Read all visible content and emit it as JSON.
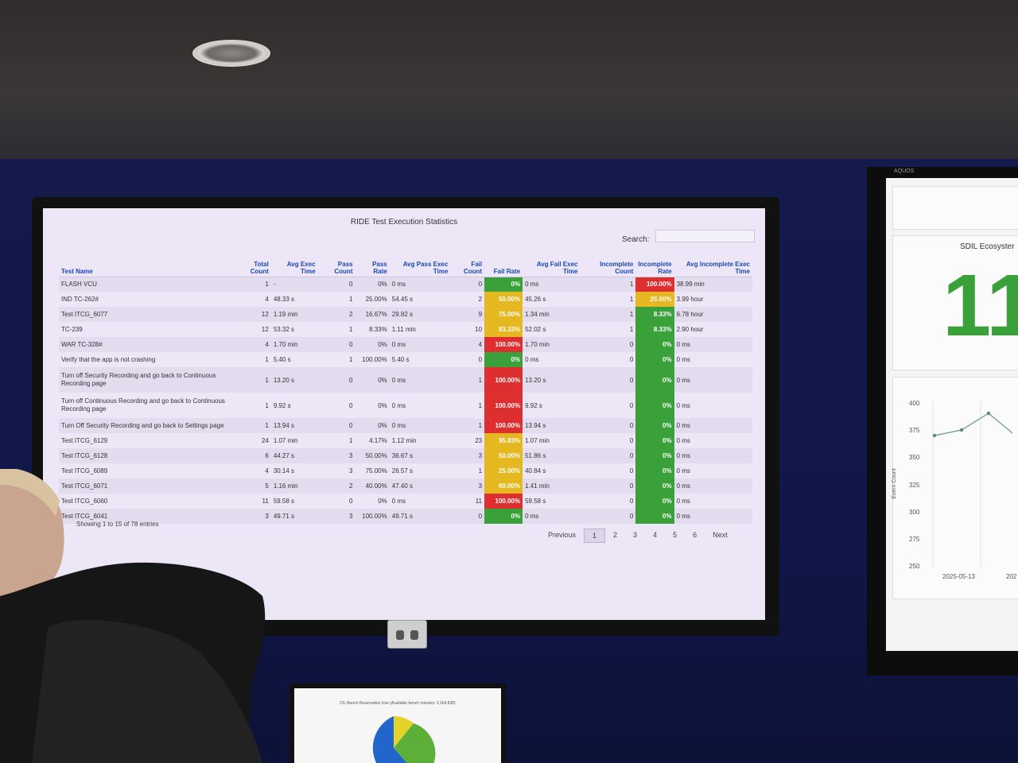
{
  "dashboard": {
    "title": "RIDE Test Execution Statistics",
    "search_label": "Search:",
    "search_value": "",
    "columns": [
      "Test Name",
      "Total Count",
      "Avg Exec Time",
      "Pass Count",
      "Pass Rate",
      "Avg Pass Exec Time",
      "Fail Count",
      "Fail Rate",
      "Avg Fail Exec Time",
      "Incomplete Count",
      "Incomplete Rate",
      "Avg Incomplete Exec Time"
    ],
    "rows": [
      [
        "FLASH VCU",
        "1",
        "-",
        "0",
        "0%",
        "0 ms",
        "0",
        "0%",
        "0 ms",
        "1",
        "100.00%",
        "38.99 min"
      ],
      [
        "IND TC-262#",
        "4",
        "48.33 s",
        "1",
        "25.00%",
        "54.45 s",
        "2",
        "50.00%",
        "45.26 s",
        "1",
        "25.00%",
        "3.99 hour"
      ],
      [
        "Test ITCG_6077",
        "12",
        "1.19 min",
        "2",
        "16.67%",
        "29.82 s",
        "9",
        "75.00%",
        "1.34 min",
        "1",
        "8.33%",
        "6.78 hour"
      ],
      [
        "TC-239",
        "12",
        "53.32 s",
        "1",
        "8.33%",
        "1.11 min",
        "10",
        "83.33%",
        "52.02 s",
        "1",
        "8.33%",
        "2.90 hour"
      ],
      [
        "WAR TC-328#",
        "4",
        "1.70 min",
        "0",
        "0%",
        "0 ms",
        "4",
        "100.00%",
        "1.70 min",
        "0",
        "0%",
        "0 ms"
      ],
      [
        "Verify that the app is not crashing",
        "1",
        "5.40 s",
        "1",
        "100.00%",
        "5.40 s",
        "0",
        "0%",
        "0 ms",
        "0",
        "0%",
        "0 ms"
      ],
      [
        "Turn off Security Recording and go back to Continuous Recording page",
        "1",
        "13.20 s",
        "0",
        "0%",
        "0 ms",
        "1",
        "100.00%",
        "13.20 s",
        "0",
        "0%",
        "0 ms"
      ],
      [
        "Turn off Continuous Recording and go back to Continuous Recording page",
        "1",
        "9.92 s",
        "0",
        "0%",
        "0 ms",
        "1",
        "100.00%",
        "9.92 s",
        "0",
        "0%",
        "0 ms"
      ],
      [
        "Turn Off Security Recording and go back to Settings page",
        "1",
        "13.94 s",
        "0",
        "0%",
        "0 ms",
        "1",
        "100.00%",
        "13.94 s",
        "0",
        "0%",
        "0 ms"
      ],
      [
        "Test ITCG_6129",
        "24",
        "1.07 min",
        "1",
        "4.17%",
        "1.12 min",
        "23",
        "95.83%",
        "1.07 min",
        "0",
        "0%",
        "0 ms"
      ],
      [
        "Test ITCG_6128",
        "6",
        "44.27 s",
        "3",
        "50.00%",
        "36.67 s",
        "3",
        "50.00%",
        "51.86 s",
        "0",
        "0%",
        "0 ms"
      ],
      [
        "Test ITCG_6089",
        "4",
        "30.14 s",
        "3",
        "75.00%",
        "26.57 s",
        "1",
        "25.00%",
        "40.84 s",
        "0",
        "0%",
        "0 ms"
      ],
      [
        "Test ITCG_6071",
        "5",
        "1.16 min",
        "2",
        "40.00%",
        "47.40 s",
        "3",
        "60.00%",
        "1.41 min",
        "0",
        "0%",
        "0 ms"
      ],
      [
        "Test ITCG_6060",
        "11",
        "59.58 s",
        "0",
        "0%",
        "0 ms",
        "11",
        "100.00%",
        "59.58 s",
        "0",
        "0%",
        "0 ms"
      ],
      [
        "Test ITCG_6041",
        "3",
        "49.71 s",
        "3",
        "100.00%",
        "49.71 s",
        "0",
        "0%",
        "0 ms",
        "0",
        "0%",
        "0 ms"
      ]
    ],
    "fail_rate_colors": [
      "green",
      "yellow",
      "yellow",
      "yellow",
      "red",
      "green",
      "red",
      "red",
      "red",
      "yellow",
      "yellow",
      "yellow",
      "yellow",
      "red",
      "green"
    ],
    "incomplete_rate_colors": [
      "red",
      "yellow",
      "green",
      "green",
      "green",
      "green",
      "green",
      "green",
      "green",
      "green",
      "green",
      "green",
      "green",
      "green",
      "green"
    ],
    "footer": "Showing 1 to 15 of 78 entries",
    "pager": [
      "Previous",
      "1",
      "2",
      "3",
      "4",
      "5",
      "6",
      "Next"
    ],
    "current_page": "1"
  },
  "side_screen": {
    "brand": "AQUOS",
    "title": "SDIL Ecosyster",
    "big_number": "11",
    "y_axis_label": "Event Count",
    "y_ticks": [
      "400",
      "375",
      "350",
      "325",
      "300",
      "275",
      "250"
    ],
    "x_ticks": [
      "2025-05-13",
      "202"
    ]
  },
  "bottom_monitor": {
    "title": "CIL Bench Reservation Use (Available bench minutes: 3,164,838)"
  },
  "colors": {
    "green": "#3aa03a",
    "yellow": "#e5b720",
    "red": "#dd2f2f",
    "header_blue": "#1a49b5",
    "screen_bg": "#ece6f7"
  }
}
